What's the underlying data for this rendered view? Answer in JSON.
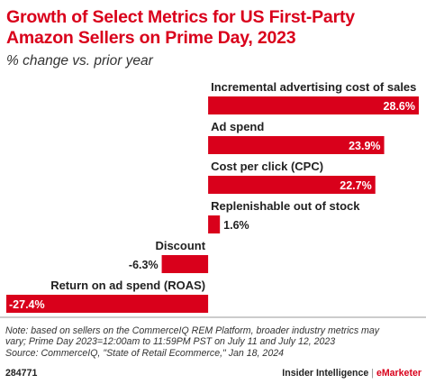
{
  "header": {
    "title": "Growth of Select Metrics for US First-Party Amazon Sellers on Prime Day, 2023",
    "subtitle": "% change vs. prior year"
  },
  "chart_data": {
    "type": "bar",
    "orientation": "horizontal",
    "title": "Growth of Select Metrics for US First-Party Amazon Sellers on Prime Day, 2023",
    "subtitle": "% change vs. prior year",
    "categories": [
      "Incremental advertising cost of sales",
      "Ad spend",
      "Cost per click (CPC)",
      "Replenishable out of stock",
      "Discount",
      "Return on ad spend (ROAS)"
    ],
    "values": [
      28.6,
      23.9,
      22.7,
      1.6,
      -6.3,
      -27.4
    ],
    "labels": [
      "28.6%",
      "23.9%",
      "22.7%",
      "1.6%",
      "-6.3%",
      "-27.4%"
    ],
    "xlim": [
      -27.4,
      28.6
    ],
    "bar_color": "#d9001b",
    "grid": false,
    "legend": "none"
  },
  "notes": {
    "line1": "Note: based on sellers on the CommerceIQ REM Platform, broader industry metrics may",
    "line2": "vary; Prime Day 2023=12:00am to 11:59PM PST on July 11 and July 12, 2023",
    "line3": "Source: CommerceIQ, \"State of Retail Ecommerce,\" Jan 18, 2024"
  },
  "footer": {
    "chart_id": "284771",
    "brand_primary": "Insider Intelligence",
    "brand_separator": "|",
    "brand_secondary": "eMarketer"
  },
  "colors": {
    "accent": "#d9001b",
    "divider": "#999999"
  }
}
